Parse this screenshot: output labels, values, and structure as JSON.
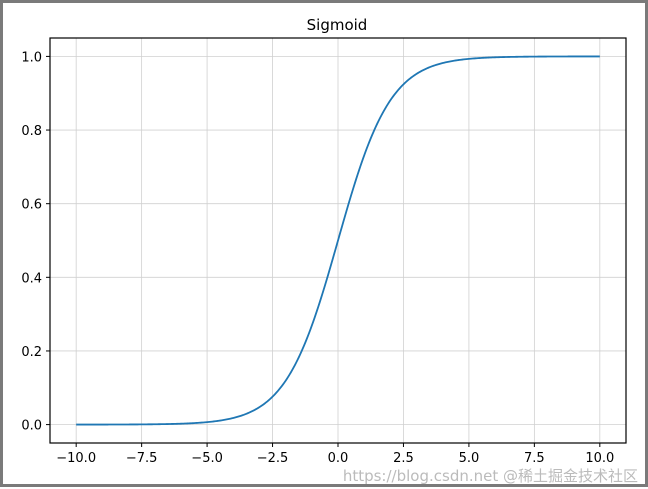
{
  "chart_data": {
    "type": "line",
    "title": "Sigmoid",
    "xlabel": "",
    "ylabel": "",
    "xlim": [
      -11,
      11
    ],
    "ylim": [
      -0.05,
      1.05
    ],
    "grid": true,
    "x_ticks": [
      "−10.0",
      "−7.5",
      "−5.0",
      "−2.5",
      "0.0",
      "2.5",
      "5.0",
      "7.5",
      "10.0"
    ],
    "x_tick_values": [
      -10,
      -7.5,
      -5,
      -2.5,
      0,
      2.5,
      5,
      7.5,
      10
    ],
    "y_ticks": [
      "0.0",
      "0.2",
      "0.4",
      "0.6",
      "0.8",
      "1.0"
    ],
    "y_tick_values": [
      0,
      0.2,
      0.4,
      0.6,
      0.8,
      1.0
    ],
    "series": [
      {
        "function": "1/(1+exp(-x))",
        "x_range": [
          -10,
          10
        ],
        "color": "#1f77b4",
        "x": [
          -10,
          -7.5,
          -5,
          -2.5,
          -1,
          0,
          1,
          2.5,
          5,
          7.5,
          10
        ],
        "y": [
          0.0,
          0.0006,
          0.0067,
          0.0759,
          0.2689,
          0.5,
          0.7311,
          0.9241,
          0.9933,
          0.9994,
          1.0
        ]
      }
    ]
  },
  "watermark": "https://blog.csdn.net @稀土掘金技术社区"
}
